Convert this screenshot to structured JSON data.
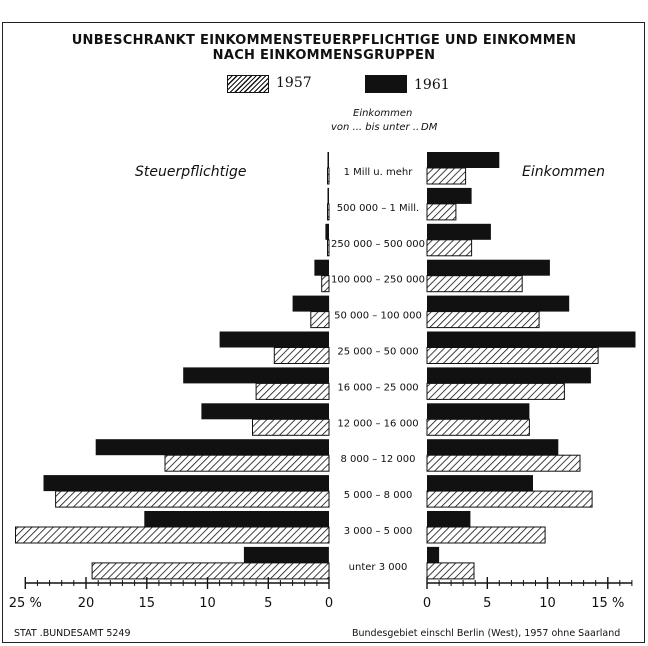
{
  "header": {
    "line1": "UNBESCHRANKT EINKOMMENSTEUERPFLICHTIGE UND EINKOMMEN",
    "line2": "NACH EINKOMMENSGRUPPEN"
  },
  "legend": {
    "s1957": "1957",
    "s1961": "1961"
  },
  "column_header": {
    "line1": "Einkommen",
    "line2": "von ... bis unter ..",
    "unit": "DM"
  },
  "panels": {
    "left_title": "Steuerpflichtige",
    "right_title": "Einkommen"
  },
  "footer": {
    "source": "STAT .BUNDESAMT 5249",
    "note": "Bundesgebiet einschl Berlin (West), 1957 ohne Saarland"
  },
  "colors": {
    "ink": "#111111",
    "paper": "#ffffff"
  },
  "chart_data": {
    "type": "bar",
    "orientation": "horizontal",
    "categories": [
      "1 Mill u. mehr",
      "500 000 – 1 Mill.",
      "250 000 – 500 000",
      "100 000 – 250 000",
      "50 000 – 100 000",
      "25 000 – 50 000",
      "16 000 – 25 000",
      "12 000 – 16 000",
      "8 000 – 12 000",
      "5 000 – 8 000",
      "3 000 – 5 000",
      "unter 3 000"
    ],
    "panels": [
      {
        "title": "Steuerpflichtige",
        "direction": "left",
        "xlim": [
          0,
          25
        ],
        "ticks": [
          0,
          5,
          10,
          15,
          20,
          25
        ],
        "tick_labels": [
          "0",
          "5",
          "10",
          "15",
          "20",
          "25 %"
        ],
        "series": [
          {
            "name": "1961",
            "fill": "solid",
            "values": [
              0.05,
              0.1,
              0.3,
              1.2,
              3.0,
              9.0,
              12.0,
              10.5,
              19.2,
              23.5,
              15.2,
              7.0
            ]
          },
          {
            "name": "1957",
            "fill": "hatched",
            "values": [
              0.02,
              0.05,
              0.1,
              0.6,
              1.5,
              4.5,
              6.0,
              6.3,
              13.5,
              22.5,
              25.8,
              19.5
            ]
          }
        ]
      },
      {
        "title": "Einkommen",
        "direction": "right",
        "xlim": [
          0,
          17
        ],
        "ticks": [
          0,
          5,
          10,
          15
        ],
        "tick_labels": [
          "0",
          "5",
          "10",
          "15 %"
        ],
        "series": [
          {
            "name": "1961",
            "fill": "solid",
            "values": [
              6.0,
              3.7,
              5.3,
              10.2,
              11.8,
              17.3,
              13.6,
              8.5,
              10.9,
              8.8,
              3.6,
              1.0
            ]
          },
          {
            "name": "1957",
            "fill": "hatched",
            "values": [
              3.2,
              2.4,
              3.7,
              7.9,
              9.3,
              14.2,
              11.4,
              8.5,
              12.7,
              13.7,
              9.8,
              3.9
            ]
          }
        ]
      }
    ],
    "legend_position": "top-center"
  }
}
